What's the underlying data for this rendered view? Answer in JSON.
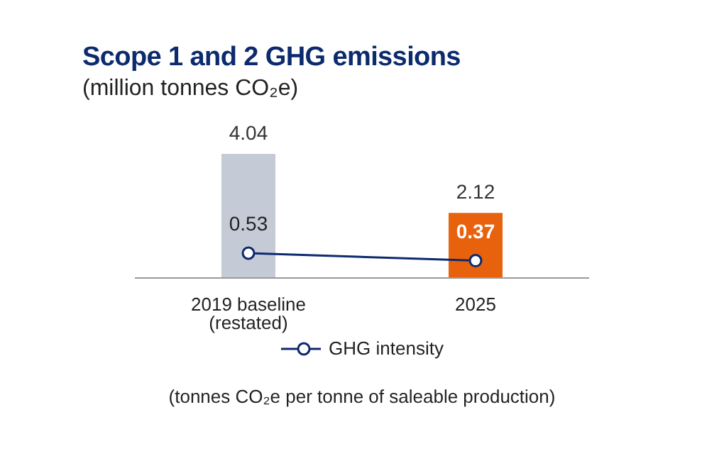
{
  "chart_data": {
    "type": "bar",
    "title": "Scope 1 and 2 GHG emissions",
    "subtitle": "(million tonnes CO₂e)",
    "categories": [
      "2019 baseline (restated)",
      "2025"
    ],
    "series": [
      {
        "colors": [
          "#c5cad7",
          "#e8620e"
        ],
        "values": [
          4.04,
          2.12
        ]
      },
      {
        "type": "line",
        "name": "GHG intensity",
        "color": "#0c2a6e",
        "axis": "y2",
        "values": [
          0.53,
          0.37
        ]
      }
    ],
    "tick_labels": false,
    "data_labels": true,
    "marker": "circle",
    "legend": "bottom",
    "grid": false,
    "annotations": [
      "(tonnes CO₂e per tonne of saleable production)"
    ]
  }
}
